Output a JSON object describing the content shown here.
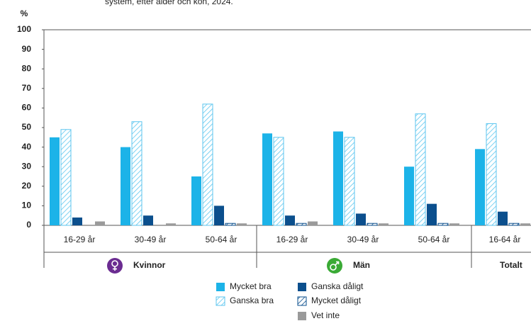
{
  "chart_data": {
    "type": "bar",
    "title": "system, efter ålder och kön, 2024.",
    "y_label": "%",
    "categories": [
      "16-29 år",
      "30-49 år",
      "50-64 år",
      "16-29 år",
      "30-49 år",
      "50-64 år",
      "16-64 år"
    ],
    "groups": [
      {
        "name": "Kvinnor",
        "size": 3
      },
      {
        "name": "Män",
        "size": 3
      },
      {
        "name": "Totalt",
        "size": 1
      }
    ],
    "series": [
      {
        "name": "Mycket bra",
        "color": "#1cb3e8",
        "hatch": false,
        "values": [
          45,
          40,
          25,
          47,
          48,
          30,
          39
        ]
      },
      {
        "name": "Ganska bra",
        "color": "#5cc6ef",
        "hatch": true,
        "values": [
          49,
          53,
          62,
          45,
          45,
          57,
          52
        ]
      },
      {
        "name": "Ganska dåligt",
        "color": "#0b4f8d",
        "hatch": false,
        "values": [
          4,
          5,
          10,
          5,
          6,
          11,
          7
        ]
      },
      {
        "name": "Mycket dåligt",
        "color": "#0b4f8d",
        "hatch": true,
        "values": [
          0,
          0,
          1,
          1,
          1,
          1,
          1
        ]
      },
      {
        "name": "Vet inte",
        "color": "#9a9a9a",
        "hatch": false,
        "values": [
          2,
          1,
          1,
          2,
          1,
          1,
          1
        ]
      }
    ],
    "ylim": [
      0,
      100
    ],
    "yticks": [
      0,
      10,
      20,
      30,
      40,
      50,
      60,
      70,
      80,
      90,
      100
    ],
    "grid": false
  }
}
